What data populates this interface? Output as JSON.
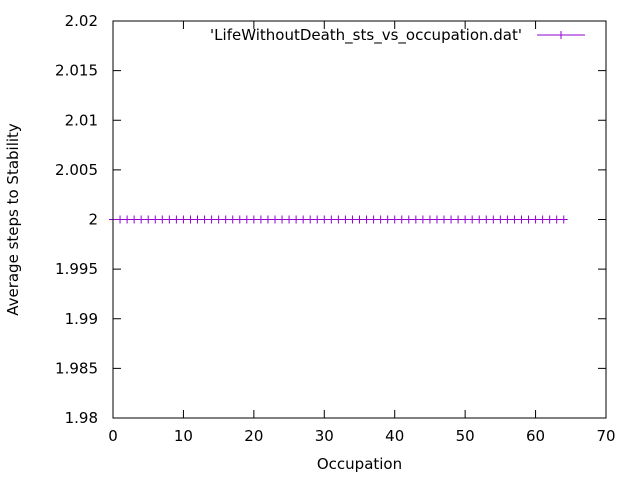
{
  "chart_data": {
    "type": "line",
    "title": "",
    "xlabel": "Occupation",
    "ylabel": "Average steps to Stability",
    "xlim": [
      0,
      70
    ],
    "ylim": [
      1.98,
      2.02
    ],
    "xticks": [
      0,
      10,
      20,
      30,
      40,
      50,
      60,
      70
    ],
    "xtick_labels": [
      "0",
      "10",
      "20",
      "30",
      "40",
      "50",
      "60",
      "70"
    ],
    "yticks": [
      1.98,
      1.985,
      1.99,
      1.995,
      2.0,
      2.005,
      2.01,
      2.015,
      2.02
    ],
    "ytick_labels": [
      "1.98",
      "1.985",
      "1.99",
      "1.995",
      "2",
      "2.005",
      "2.01",
      "2.015",
      "2.02"
    ],
    "grid": false,
    "legend_position": "top-right",
    "series": [
      {
        "name": "'LifeWithoutDeath_sts_vs_occupation.dat'",
        "color": "#9400d3",
        "marker": "plus",
        "x": [
          0,
          1,
          2,
          3,
          4,
          5,
          6,
          7,
          8,
          9,
          10,
          11,
          12,
          13,
          14,
          15,
          16,
          17,
          18,
          19,
          20,
          21,
          22,
          23,
          24,
          25,
          26,
          27,
          28,
          29,
          30,
          31,
          32,
          33,
          34,
          35,
          36,
          37,
          38,
          39,
          40,
          41,
          42,
          43,
          44,
          45,
          46,
          47,
          48,
          49,
          50,
          51,
          52,
          53,
          54,
          55,
          56,
          57,
          58,
          59,
          60,
          61,
          62,
          63,
          64
        ],
        "y": [
          2,
          2,
          2,
          2,
          2,
          2,
          2,
          2,
          2,
          2,
          2,
          2,
          2,
          2,
          2,
          2,
          2,
          2,
          2,
          2,
          2,
          2,
          2,
          2,
          2,
          2,
          2,
          2,
          2,
          2,
          2,
          2,
          2,
          2,
          2,
          2,
          2,
          2,
          2,
          2,
          2,
          2,
          2,
          2,
          2,
          2,
          2,
          2,
          2,
          2,
          2,
          2,
          2,
          2,
          2,
          2,
          2,
          2,
          2,
          2,
          2,
          2,
          2,
          2,
          2
        ]
      }
    ]
  }
}
